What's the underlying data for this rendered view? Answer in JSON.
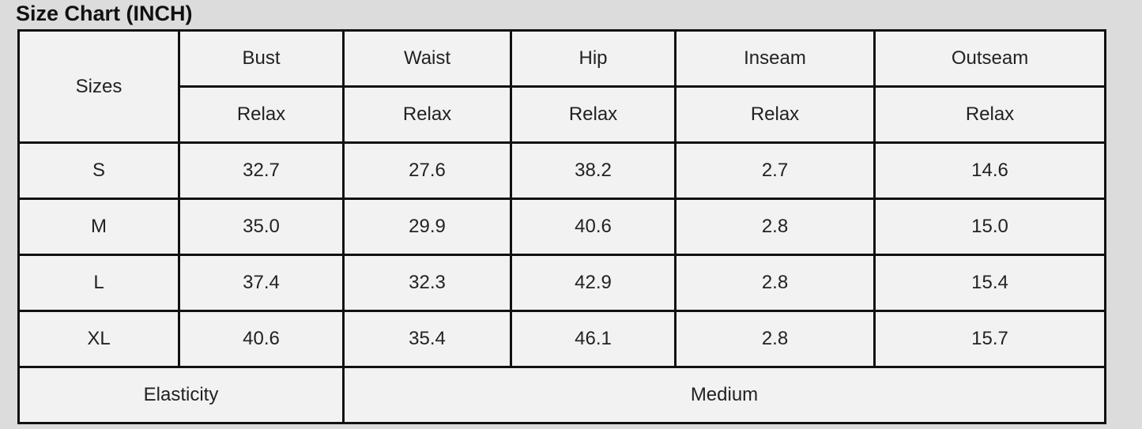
{
  "title": "Size Chart (INCH)",
  "header": {
    "sizes_label": "Sizes",
    "columns": [
      "Bust",
      "Waist",
      "Hip",
      "Inseam",
      "Outseam"
    ],
    "subheader": [
      "Relax",
      "Relax",
      "Relax",
      "Relax",
      "Relax"
    ]
  },
  "rows": [
    {
      "size": "S",
      "values": [
        "32.7",
        "27.6",
        "38.2",
        "2.7",
        "14.6"
      ]
    },
    {
      "size": "M",
      "values": [
        "35.0",
        "29.9",
        "40.6",
        "2.8",
        "15.0"
      ]
    },
    {
      "size": "L",
      "values": [
        "37.4",
        "32.3",
        "42.9",
        "2.8",
        "15.4"
      ]
    },
    {
      "size": "XL",
      "values": [
        "40.6",
        "35.4",
        "46.1",
        "2.8",
        "15.7"
      ]
    }
  ],
  "footer": {
    "label": "Elasticity",
    "value": "Medium"
  }
}
